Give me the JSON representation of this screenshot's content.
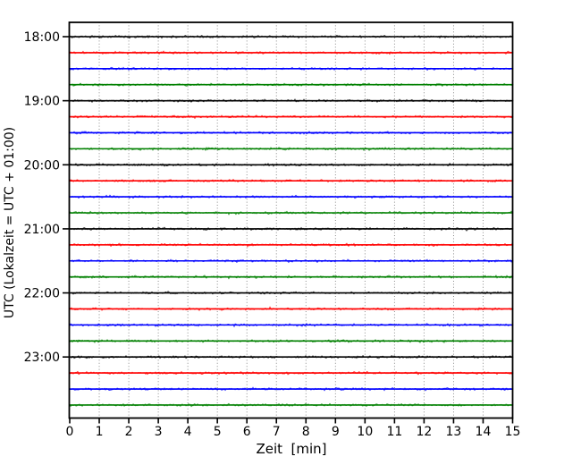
{
  "figure": {
    "background": "#ffffff",
    "title": ""
  },
  "axes": {
    "xlabel": "Zeit  [min]",
    "ylabel": "UTC (Lokalzeit = UTC + 01:00)"
  },
  "chart_data": {
    "type": "line",
    "variant": "seismogram-helicorder-dayplot",
    "title": "",
    "xlabel": "Zeit  [min]",
    "ylabel": "UTC (Lokalzeit = UTC + 01:00)",
    "xlim": [
      0,
      15
    ],
    "x_ticks": [
      0,
      1,
      2,
      3,
      4,
      5,
      6,
      7,
      8,
      9,
      10,
      11,
      12,
      13,
      14,
      15
    ],
    "x_tick_labels": [
      "0",
      "1",
      "2",
      "3",
      "4",
      "5",
      "6",
      "7",
      "8",
      "9",
      "10",
      "11",
      "12",
      "13",
      "14",
      "15"
    ],
    "y_tick_labels": [
      "18:00",
      "19:00",
      "20:00",
      "21:00",
      "22:00",
      "23:00"
    ],
    "minutes_per_row": 15,
    "color_cycle": [
      "#000000",
      "#ff0000",
      "#0000ff",
      "#008000"
    ],
    "grid": {
      "vertical": "dotted",
      "horizontal": "none"
    },
    "signal": "continuous flat low-amplitude background noise on every row, no events",
    "rows": [
      {
        "start": "18:00",
        "color": "#000000",
        "hour_tick": true
      },
      {
        "start": "18:15",
        "color": "#ff0000",
        "hour_tick": false
      },
      {
        "start": "18:30",
        "color": "#0000ff",
        "hour_tick": false
      },
      {
        "start": "18:45",
        "color": "#008000",
        "hour_tick": false
      },
      {
        "start": "19:00",
        "color": "#000000",
        "hour_tick": true
      },
      {
        "start": "19:15",
        "color": "#ff0000",
        "hour_tick": false
      },
      {
        "start": "19:30",
        "color": "#0000ff",
        "hour_tick": false
      },
      {
        "start": "19:45",
        "color": "#008000",
        "hour_tick": false
      },
      {
        "start": "20:00",
        "color": "#000000",
        "hour_tick": true
      },
      {
        "start": "20:15",
        "color": "#ff0000",
        "hour_tick": false
      },
      {
        "start": "20:30",
        "color": "#0000ff",
        "hour_tick": false
      },
      {
        "start": "20:45",
        "color": "#008000",
        "hour_tick": false
      },
      {
        "start": "21:00",
        "color": "#000000",
        "hour_tick": true
      },
      {
        "start": "21:15",
        "color": "#ff0000",
        "hour_tick": false
      },
      {
        "start": "21:30",
        "color": "#0000ff",
        "hour_tick": false
      },
      {
        "start": "21:45",
        "color": "#008000",
        "hour_tick": false
      },
      {
        "start": "22:00",
        "color": "#000000",
        "hour_tick": true
      },
      {
        "start": "22:15",
        "color": "#ff0000",
        "hour_tick": false
      },
      {
        "start": "22:30",
        "color": "#0000ff",
        "hour_tick": false
      },
      {
        "start": "22:45",
        "color": "#008000",
        "hour_tick": false
      },
      {
        "start": "23:00",
        "color": "#000000",
        "hour_tick": true
      },
      {
        "start": "23:15",
        "color": "#ff0000",
        "hour_tick": false
      },
      {
        "start": "23:30",
        "color": "#0000ff",
        "hour_tick": false
      },
      {
        "start": "23:45",
        "color": "#008000",
        "hour_tick": false
      }
    ]
  }
}
